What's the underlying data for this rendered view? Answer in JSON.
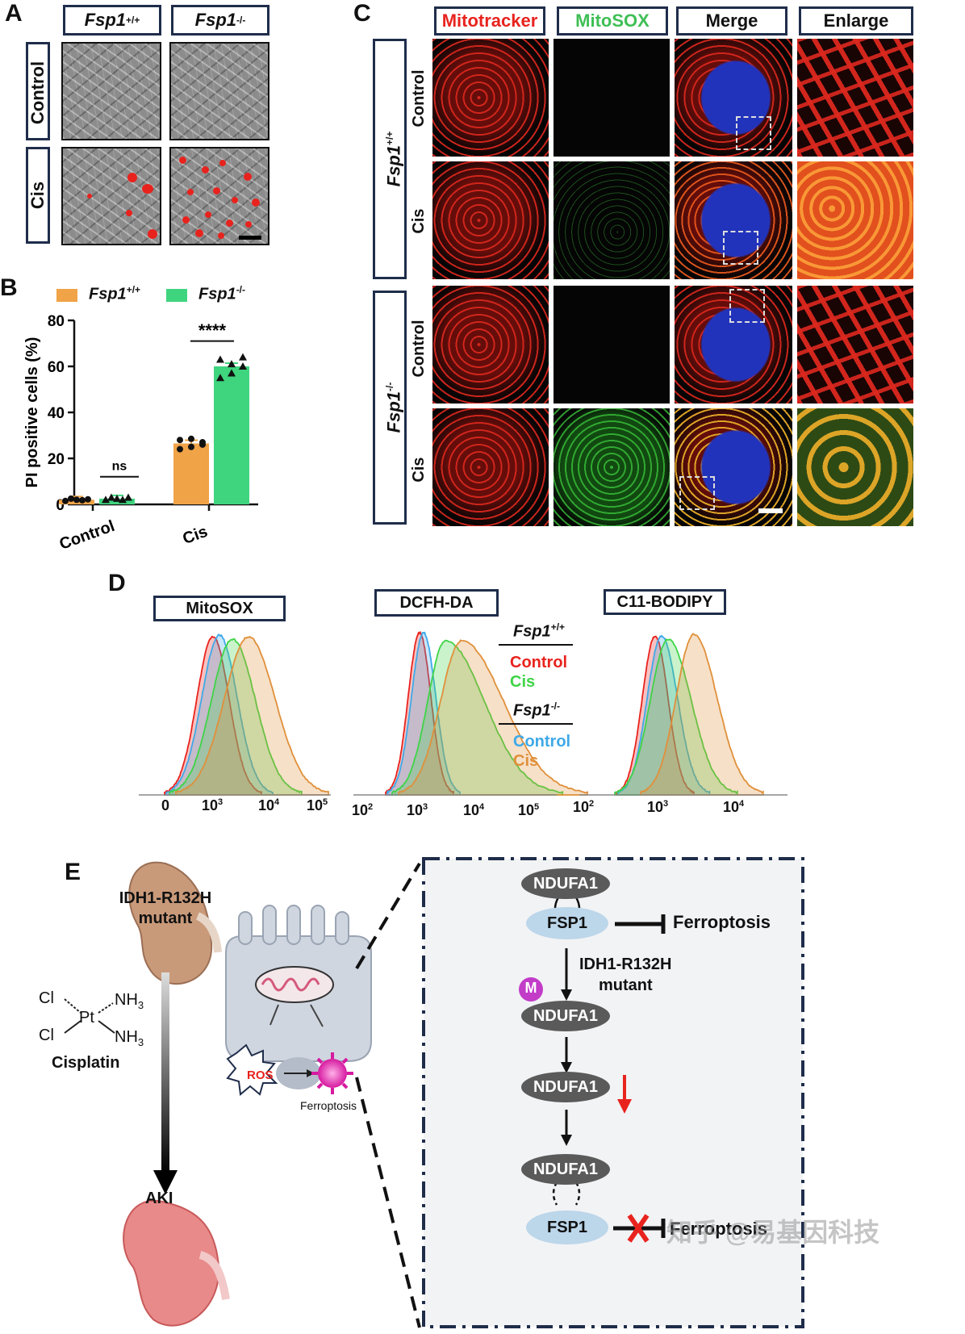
{
  "panel_labels": {
    "a": "A",
    "b": "B",
    "c": "C",
    "d": "D",
    "e": "E"
  },
  "panelA": {
    "col_wt_gene": "Fsp1",
    "col_wt_sup": "+/+",
    "col_ko_gene": "Fsp1",
    "col_ko_sup": "-/-",
    "row1": "Control",
    "row2": "Cis"
  },
  "panelB": {
    "legend_wt_gene": "Fsp1",
    "legend_wt_sup": "+/+",
    "legend_ko_gene": "Fsp1",
    "legend_ko_sup": "-/-",
    "colors": {
      "wt": "#f0a347",
      "ko": "#3fd47e"
    },
    "sig_ns": "ns",
    "sig_star": "****"
  },
  "chart_data": {
    "type": "bar",
    "ylabel": "PI positive cells (%)",
    "ylim": [
      0,
      80
    ],
    "yticks": [
      "0",
      "20",
      "40",
      "60",
      "80"
    ],
    "categories": [
      "Control",
      "Cis"
    ],
    "series": [
      {
        "name": "Fsp1+/+",
        "values": [
          2,
          26.5
        ],
        "points": [
          [
            1.5,
            2.5,
            2,
            1.8,
            2.2
          ],
          [
            24,
            25,
            27,
            28,
            28.5,
            26
          ]
        ]
      },
      {
        "name": "Fsp1-/-",
        "values": [
          2.5,
          60
        ],
        "points": [
          [
            2,
            3,
            2.5,
            2,
            3
          ],
          [
            55,
            57,
            60,
            63,
            61,
            64
          ]
        ]
      }
    ],
    "annotations": [
      "ns",
      "****"
    ]
  },
  "panelC": {
    "headers": [
      "Mitotracker",
      "MitoSOX",
      "Merge",
      "Enlarge"
    ],
    "header_colors": [
      "#e8231e",
      "#3fbf55",
      "#111111",
      "#111111"
    ],
    "group1_gene": "Fsp1",
    "group1_sup": "+/+",
    "group2_gene": "Fsp1",
    "group2_sup": "-/-",
    "rows": [
      "Control",
      "Cis",
      "Control",
      "Cis"
    ]
  },
  "panelD": {
    "titles": [
      "MitoSOX",
      "DCFH-DA",
      "C11-BODIPY"
    ],
    "axis1": [
      "0",
      "10",
      "3",
      "10",
      "4",
      "10",
      "5"
    ],
    "axis2": [
      "10",
      "2",
      "10",
      "3",
      "10",
      "4",
      "10",
      "5"
    ],
    "axis3": [
      "10",
      "2",
      "10",
      "3",
      "10",
      "4"
    ],
    "legend": {
      "wt_gene": "Fsp1",
      "wt_sup": "+/+",
      "wt_control": "Control",
      "wt_cis": "Cis",
      "ko_gene": "Fsp1",
      "ko_sup": "-/-",
      "ko_control": "Control",
      "ko_cis": "Cis"
    },
    "colors": {
      "wt_control": "#e8231e",
      "wt_cis": "#3fd447",
      "ko_control": "#3fa9e8",
      "ko_cis": "#e0903a"
    }
  },
  "panelE": {
    "idh_line1": "IDH1-R132H",
    "idh_line2": "mutant",
    "cl1": "Cl",
    "cl2": "Cl",
    "pt": "Pt",
    "nh3a": "NH",
    "nh3b": "NH",
    "sub3": "3",
    "cisplatin": "Cisplatin",
    "aki": "AKI",
    "ros": "ROS",
    "ferroptosis_small": "Ferroptosis",
    "ndufa1": "NDUFA1",
    "fsp1": "FSP1",
    "ferroptosis": "Ferroptosis",
    "mid_line1": "IDH1-R132H",
    "mid_line2": "mutant",
    "m_badge": "M",
    "watermark": "知乎 @易基因科技"
  }
}
